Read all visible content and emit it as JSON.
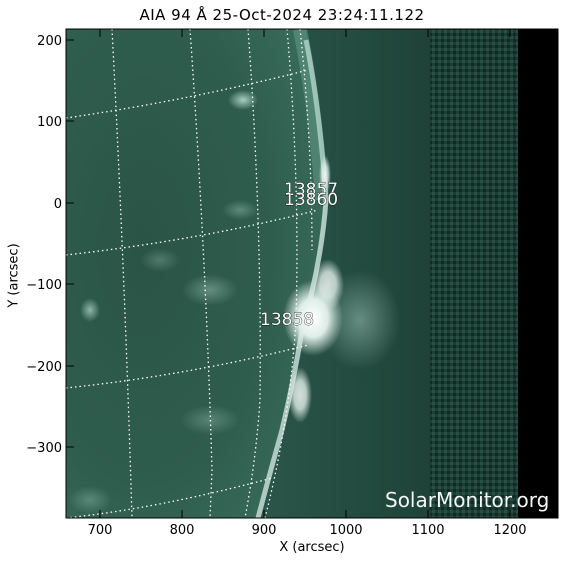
{
  "title": "AIA 94 Å 25-Oct-2024 23:24:11.122",
  "axes": {
    "xlabel": "X (arcsec)",
    "ylabel": "Y (arcsec)",
    "xticks": [
      "700",
      "800",
      "900",
      "1000",
      "1100",
      "1200"
    ],
    "yticks": [
      "200",
      "100",
      "0",
      "−100",
      "−200",
      "−300"
    ]
  },
  "active_regions": [
    {
      "id": "13857"
    },
    {
      "id": "13860"
    },
    {
      "id": "13858"
    }
  ],
  "watermark": "SolarMonitor.org",
  "colors": {
    "disk": "#2e5c4b",
    "corona": "#21483c",
    "background": "#000000",
    "grid": "#ffffff"
  }
}
